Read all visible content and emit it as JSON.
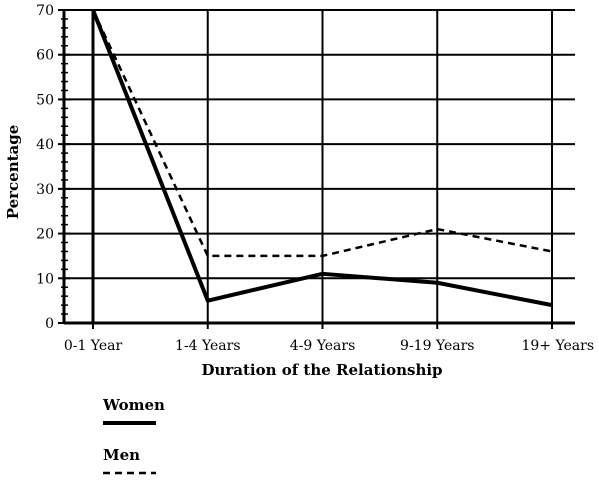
{
  "chart_data": {
    "type": "line",
    "title": "",
    "xlabel": "Duration of the Relationship",
    "ylabel": "Percentage",
    "categories": [
      "0-1 Year",
      "1-4 Years",
      "4-9 Years",
      "9-19 Years",
      "19+ Years"
    ],
    "ylim": [
      0,
      70
    ],
    "yticks": [
      0,
      10,
      20,
      30,
      40,
      50,
      60,
      70
    ],
    "grid": true,
    "legend_position": "bottom-left",
    "series": [
      {
        "name": "Women",
        "line_style": "solid",
        "color": "#000000",
        "values": [
          70,
          5,
          11,
          9,
          4
        ]
      },
      {
        "name": "Men",
        "line_style": "dashed",
        "color": "#000000",
        "values": [
          70,
          15,
          15,
          21,
          16
        ]
      }
    ]
  }
}
